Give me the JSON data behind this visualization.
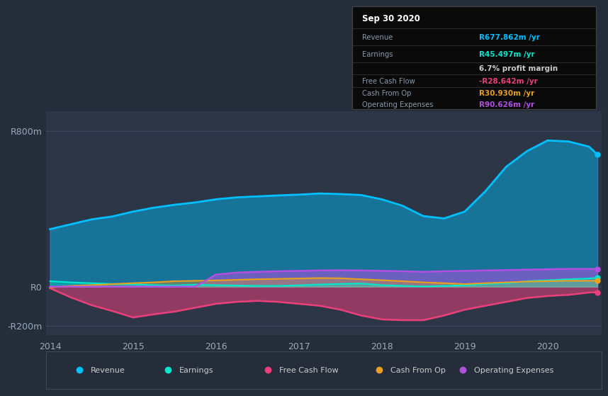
{
  "background_color": "#252d3a",
  "plot_bg_color": "#2c3647",
  "x_years": [
    2014.0,
    2014.25,
    2014.5,
    2014.75,
    2015.0,
    2015.25,
    2015.5,
    2015.75,
    2016.0,
    2016.25,
    2016.5,
    2016.75,
    2017.0,
    2017.25,
    2017.5,
    2017.75,
    2018.0,
    2018.25,
    2018.5,
    2018.75,
    2019.0,
    2019.25,
    2019.5,
    2019.75,
    2020.0,
    2020.25,
    2020.5,
    2020.6
  ],
  "revenue": [
    295,
    320,
    345,
    360,
    385,
    405,
    420,
    432,
    448,
    458,
    463,
    468,
    472,
    478,
    475,
    470,
    448,
    415,
    362,
    350,
    385,
    490,
    615,
    695,
    750,
    745,
    718,
    678
  ],
  "earnings": [
    28,
    22,
    18,
    14,
    12,
    8,
    6,
    10,
    8,
    6,
    4,
    4,
    7,
    11,
    14,
    16,
    8,
    4,
    1,
    4,
    7,
    14,
    18,
    28,
    33,
    38,
    42,
    45
  ],
  "free_cash_flow": [
    -8,
    -55,
    -95,
    -125,
    -158,
    -142,
    -128,
    -108,
    -88,
    -78,
    -73,
    -78,
    -88,
    -98,
    -118,
    -148,
    -168,
    -172,
    -172,
    -148,
    -118,
    -98,
    -78,
    -58,
    -48,
    -42,
    -30,
    -29
  ],
  "cash_from_op": [
    -4,
    4,
    8,
    13,
    18,
    22,
    28,
    30,
    32,
    35,
    38,
    40,
    42,
    44,
    43,
    38,
    33,
    28,
    22,
    18,
    13,
    18,
    22,
    26,
    28,
    30,
    30,
    30
  ],
  "operating_expenses": [
    0,
    0,
    0,
    0,
    0,
    0,
    0,
    0,
    62,
    72,
    76,
    79,
    81,
    83,
    84,
    83,
    81,
    79,
    76,
    79,
    81,
    83,
    85,
    87,
    89,
    91,
    91,
    91
  ],
  "ylim": [
    -250,
    900
  ],
  "yticks": [
    -200,
    0,
    800
  ],
  "ytick_labels": [
    "-R200m",
    "R0",
    "R800m"
  ],
  "xticks": [
    2014,
    2015,
    2016,
    2017,
    2018,
    2019,
    2020
  ],
  "legend_labels": [
    "Revenue",
    "Earnings",
    "Free Cash Flow",
    "Cash From Op",
    "Operating Expenses"
  ],
  "legend_colors": [
    "#00bfff",
    "#00e8cc",
    "#e8407a",
    "#e8a020",
    "#b050e0"
  ],
  "revenue_color": "#00bfff",
  "earnings_color": "#00e8cc",
  "free_cash_flow_color": "#e8407a",
  "cash_from_op_color": "#e8a020",
  "operating_expenses_color": "#b050e0",
  "info_box": {
    "date": "Sep 30 2020",
    "revenue_val": "R677.862m",
    "earnings_val": "R45.497m",
    "profit_margin": "6.7%",
    "fcf_val": "-R28.642m",
    "cash_from_op_val": "R30.930m",
    "op_exp_val": "R90.626m"
  }
}
